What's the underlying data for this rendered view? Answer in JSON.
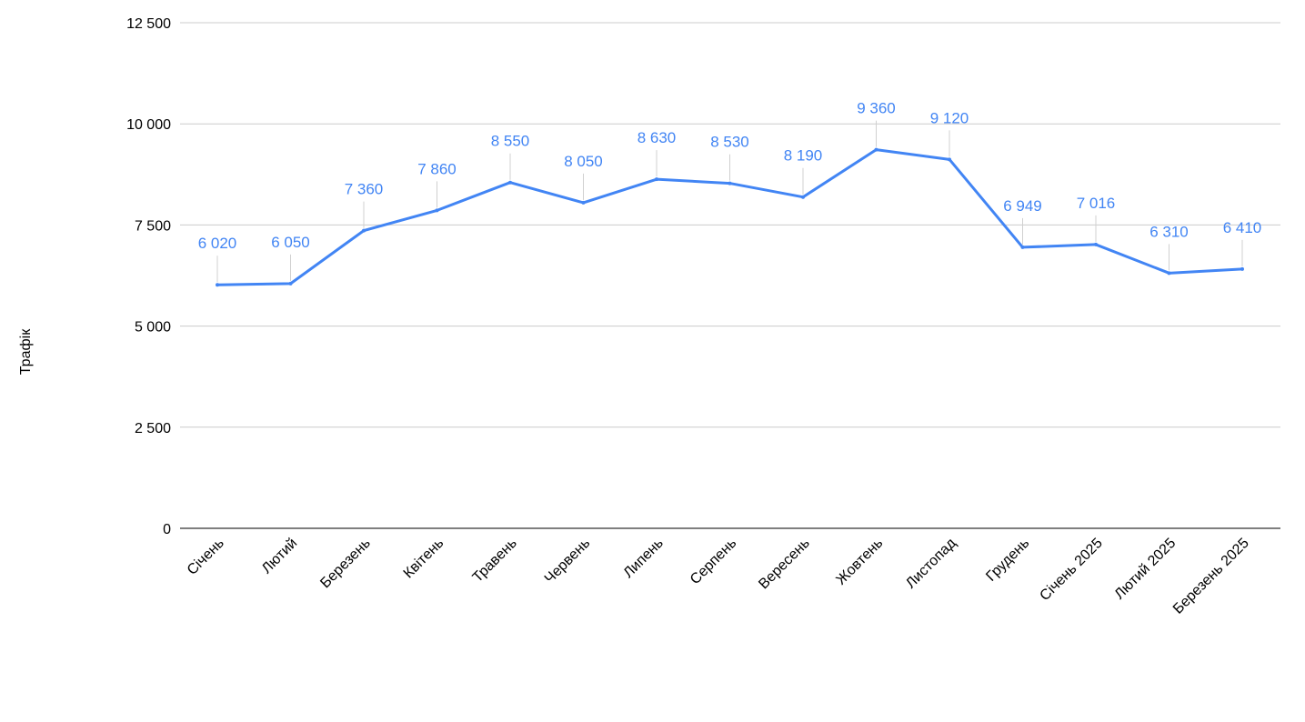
{
  "chart_data": {
    "type": "line",
    "title": "",
    "xlabel": "",
    "ylabel": "Трафік",
    "ylim": [
      0,
      12500
    ],
    "yticks": [
      0,
      2500,
      5000,
      7500,
      10000,
      12500
    ],
    "ytick_labels": [
      "0",
      "2 500",
      "5 000",
      "7 500",
      "10 000",
      "12 500"
    ],
    "grid": true,
    "legend": "none",
    "categories": [
      "Січень",
      "Лютий",
      "Березень",
      "Квітень",
      "Травень",
      "Червень",
      "Липень",
      "Серпень",
      "Вересень",
      "Жовтень",
      "Листопад",
      "Грудень",
      "Січень 2025",
      "Лютий 2025",
      "Березень 2025"
    ],
    "series": [
      {
        "values": [
          6020,
          6050,
          7360,
          7860,
          8550,
          8050,
          8630,
          8530,
          8190,
          9360,
          9120,
          6949,
          7016,
          6310,
          6410
        ],
        "data_labels": [
          "6 020",
          "6 050",
          "7 360",
          "7 860",
          "8 550",
          "8 050",
          "8 630",
          "8 530",
          "8 190",
          "9 360",
          "9 120",
          "6 949",
          "7 016",
          "6 310",
          "6 410"
        ],
        "color": "#4285f4"
      }
    ],
    "colors": {
      "line": "#4285f4",
      "grid": "#cccccc",
      "axis": "#333333",
      "text": "#000000",
      "leader": "#d0d0d0"
    }
  }
}
